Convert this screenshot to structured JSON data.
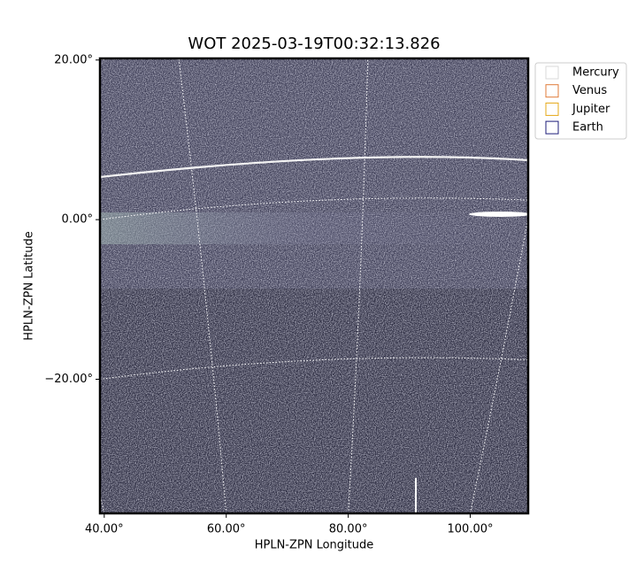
{
  "chart_data": {
    "type": "image",
    "title": "WOT 2025-03-19T00:32:13.826",
    "xlabel": "HPLN-ZPN Longitude",
    "ylabel": "HPLN-ZPN Latitude",
    "xlim": [
      39.3,
      109.5
    ],
    "ylim": [
      -36.8,
      20.2
    ],
    "xticks": [
      {
        "value": 40,
        "label": "40.00°"
      },
      {
        "value": 60,
        "label": "60.00°"
      },
      {
        "value": 80,
        "label": "80.00°"
      },
      {
        "value": 100,
        "label": "100.00°"
      }
    ],
    "yticks": [
      {
        "value": 20,
        "label": "20.00°"
      },
      {
        "value": 0,
        "label": "0.00°"
      },
      {
        "value": -20,
        "label": "−20.00°"
      }
    ],
    "grid": true,
    "legend": "upper right outside",
    "series": [
      {
        "name": "Mercury",
        "color": "#d9d9d9"
      },
      {
        "name": "Venus",
        "color": "#e07b39"
      },
      {
        "name": "Jupiter",
        "color": "#e6a817"
      },
      {
        "name": "Earth",
        "color": "#1c1c7a"
      }
    ]
  }
}
